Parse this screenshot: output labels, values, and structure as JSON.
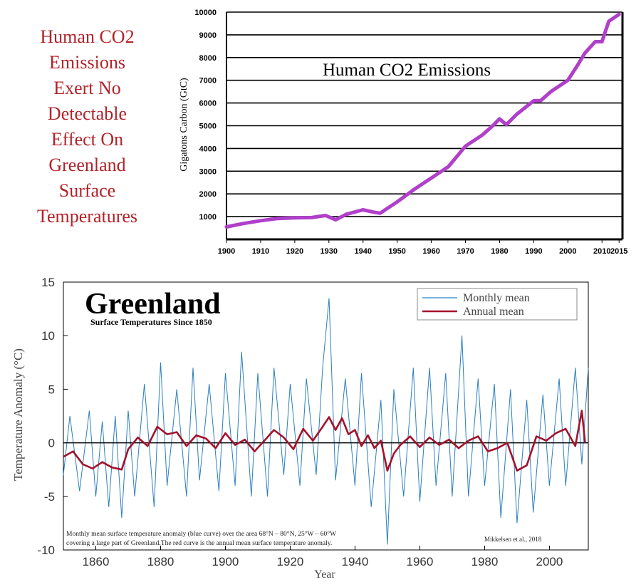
{
  "headline": {
    "lines": [
      "Human CO2",
      "Emissions",
      "Exert No",
      "Detectable",
      "Effect On",
      "Greenland",
      "Surface",
      "Temperatures"
    ],
    "color": "#b1232a"
  },
  "chart_data": [
    {
      "type": "line",
      "title": "Human CO2 Emissions",
      "ylabel": "Gigatons Carbon (GtC)",
      "xlabel": "",
      "xlim": [
        1900,
        2016
      ],
      "ylim": [
        0,
        10000
      ],
      "x_ticks": [
        1900,
        1910,
        1920,
        1930,
        1940,
        1950,
        1960,
        1970,
        1980,
        1990,
        2000,
        2010,
        2015
      ],
      "y_ticks": [
        1000,
        2000,
        3000,
        4000,
        5000,
        6000,
        7000,
        8000,
        9000,
        10000
      ],
      "grid": "horizontal",
      "line_color": "#b03fc9",
      "series": [
        {
          "x": [
            1900,
            1905,
            1910,
            1915,
            1920,
            1925,
            1929,
            1932,
            1935,
            1940,
            1943,
            1945,
            1948,
            1950,
            1955,
            1960,
            1965,
            1970,
            1975,
            1978,
            1980,
            1982,
            1985,
            1990,
            1992,
            1995,
            2000,
            2003,
            2005,
            2008,
            2010,
            2012,
            2015
          ],
          "y": [
            550,
            700,
            820,
            920,
            950,
            960,
            1050,
            860,
            1100,
            1300,
            1200,
            1150,
            1450,
            1650,
            2200,
            2700,
            3200,
            4100,
            4600,
            5000,
            5300,
            5050,
            5500,
            6100,
            6100,
            6500,
            7000,
            7700,
            8200,
            8700,
            8700,
            9600,
            9900
          ]
        }
      ]
    },
    {
      "type": "line",
      "title": "Greenland",
      "subtitle": "Surface Temperatures Since 1850",
      "xlabel": "Year",
      "ylabel": "Temperature Anomaly (°C)",
      "xlim": [
        1850,
        2012
      ],
      "ylim": [
        -10,
        15
      ],
      "x_ticks": [
        1860,
        1880,
        1900,
        1920,
        1940,
        1960,
        1980,
        2000
      ],
      "y_ticks": [
        -10,
        -5,
        0,
        5,
        10,
        15
      ],
      "legend_position": "top-right",
      "grid": "off",
      "note": "Monthly mean surface temperature anomaly (blue curve) over the area 68°N – 80°N, 25°W – 60°W covering a large part of Greenland.The red curve is the annual mean surface temperature anomaly.",
      "source": "Mikkelsen et al., 2018",
      "series": [
        {
          "name": "Monthly mean",
          "color": "#2a7fc0",
          "x": [
            1850,
            1852,
            1855,
            1858,
            1860,
            1862,
            1864,
            1866,
            1868,
            1870,
            1872,
            1875,
            1878,
            1880,
            1882,
            1885,
            1888,
            1890,
            1892,
            1895,
            1898,
            1900,
            1903,
            1905,
            1908,
            1910,
            1913,
            1915,
            1918,
            1920,
            1923,
            1925,
            1928,
            1930,
            1932,
            1934,
            1937,
            1940,
            1942,
            1945,
            1948,
            1950,
            1952,
            1955,
            1958,
            1960,
            1963,
            1965,
            1968,
            1970,
            1973,
            1975,
            1978,
            1980,
            1983,
            1985,
            1988,
            1990,
            1993,
            1995,
            1998,
            2000,
            2003,
            2005,
            2008,
            2010,
            2012
          ],
          "y": [
            -3,
            2.5,
            -4.5,
            3,
            -5,
            2,
            -6,
            2.5,
            -7,
            3,
            -5,
            5.5,
            -6,
            7.5,
            -4,
            5,
            -5,
            7,
            -3.5,
            5.5,
            -4.5,
            6.5,
            -4,
            8.5,
            -5,
            6.5,
            -5,
            7,
            -3,
            5.5,
            -4,
            6,
            -3,
            7,
            13.5,
            -3.5,
            6,
            -4,
            6.5,
            -6,
            4,
            -9.5,
            5,
            -5,
            7,
            -5.5,
            7,
            -4,
            6.5,
            -5,
            10,
            -5,
            6,
            -4,
            5.5,
            -7,
            5,
            -7.5,
            4,
            -6.5,
            4.5,
            -4,
            6,
            -4,
            7,
            -2,
            7
          ]
        },
        {
          "name": "Annual mean",
          "color": "#a3122a",
          "x": [
            1850,
            1853,
            1856,
            1859,
            1862,
            1865,
            1868,
            1870,
            1873,
            1876,
            1879,
            1882,
            1885,
            1888,
            1891,
            1894,
            1897,
            1900,
            1903,
            1906,
            1909,
            1912,
            1915,
            1918,
            1921,
            1924,
            1927,
            1930,
            1932,
            1934,
            1936,
            1938,
            1940,
            1942,
            1944,
            1946,
            1948,
            1950,
            1952,
            1954,
            1957,
            1960,
            1963,
            1966,
            1969,
            1972,
            1975,
            1978,
            1981,
            1984,
            1987,
            1990,
            1993,
            1996,
            1999,
            2002,
            2005,
            2008,
            2010,
            2011
          ],
          "y": [
            -1.3,
            -0.8,
            -2,
            -2.4,
            -1.8,
            -2.3,
            -2.5,
            -0.6,
            0.5,
            -0.3,
            1.5,
            0.8,
            1,
            -0.3,
            0.7,
            0.4,
            -0.5,
            0.9,
            -0.2,
            0.3,
            -0.8,
            0.2,
            1.2,
            0.5,
            -0.6,
            1.3,
            0.2,
            1.5,
            2.4,
            1.2,
            2.3,
            0.8,
            1.2,
            -0.3,
            0.7,
            -0.5,
            0.2,
            -2.6,
            -1,
            -0.2,
            0.6,
            -0.4,
            0.5,
            -0.2,
            0.3,
            -0.5,
            0.2,
            0.6,
            -0.8,
            -0.5,
            0,
            -2.6,
            -2.1,
            0.6,
            0.2,
            0.9,
            1.3,
            -0.3,
            3,
            0
          ]
        }
      ]
    }
  ]
}
